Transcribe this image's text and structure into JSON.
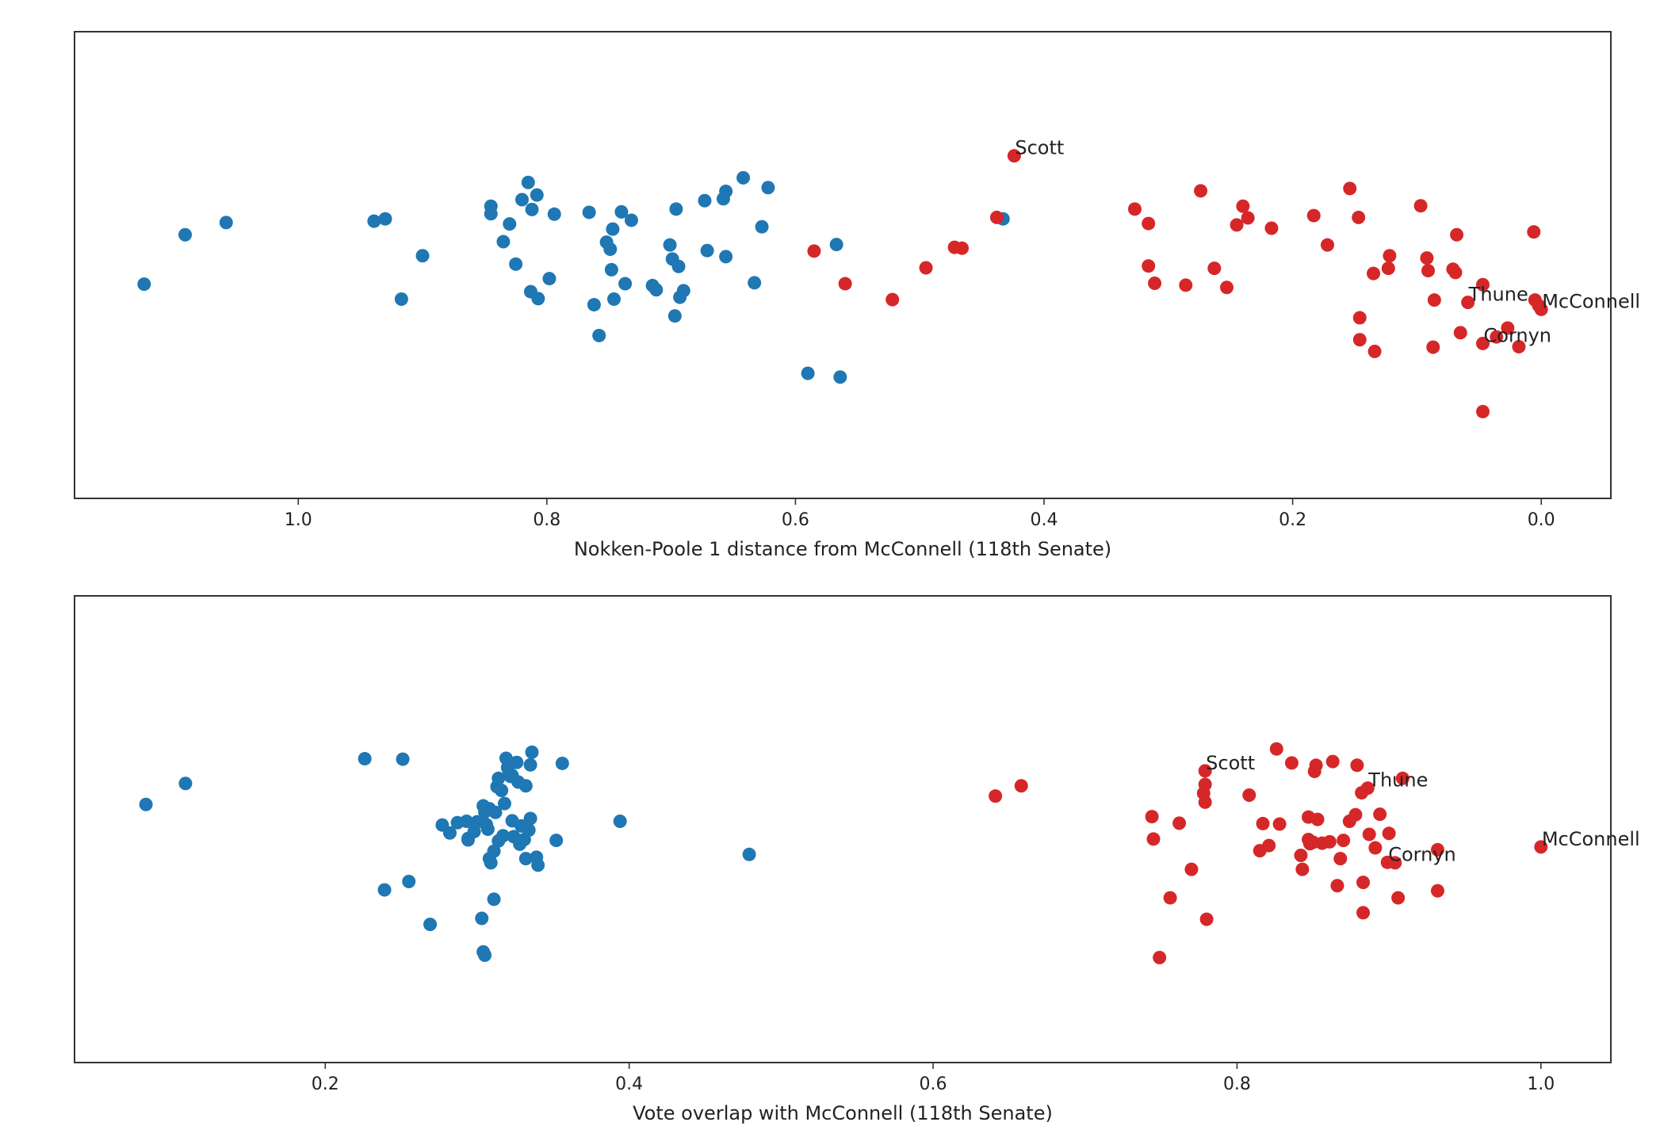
{
  "colors": {
    "democrat": "#1f77b4",
    "republican": "#d62728",
    "axis": "#333333",
    "text": "#222222"
  },
  "chart_data": [
    {
      "type": "scatter",
      "title": "",
      "xlabel": "Nokken-Poole 1 distance from McConnell (118th Senate)",
      "ylabel": "",
      "x_inverted": true,
      "xlim": [
        1.18,
        -0.056
      ],
      "ylim": [
        0,
        1
      ],
      "grid": false,
      "legend": "none",
      "x_ticks": [
        1.0,
        0.8,
        0.6,
        0.4,
        0.2,
        0.0
      ],
      "x_tick_labels": [
        "1.0",
        "0.8",
        "0.6",
        "0.4",
        "0.2",
        "0.0"
      ],
      "series": [
        {
          "color_key": "democrat",
          "points": [
            [
              1.124,
              0.459
            ],
            [
              1.091,
              0.565
            ],
            [
              1.058,
              0.591
            ],
            [
              0.939,
              0.594
            ],
            [
              0.93,
              0.599
            ],
            [
              0.917,
              0.427
            ],
            [
              0.9,
              0.52
            ],
            [
              0.845,
              0.626
            ],
            [
              0.845,
              0.61
            ],
            [
              0.835,
              0.55
            ],
            [
              0.83,
              0.588
            ],
            [
              0.825,
              0.502
            ],
            [
              0.82,
              0.64
            ],
            [
              0.815,
              0.677
            ],
            [
              0.813,
              0.443
            ],
            [
              0.812,
              0.619
            ],
            [
              0.808,
              0.65
            ],
            [
              0.807,
              0.428
            ],
            [
              0.798,
              0.471
            ],
            [
              0.794,
              0.609
            ],
            [
              0.766,
              0.613
            ],
            [
              0.762,
              0.415
            ],
            [
              0.758,
              0.349
            ],
            [
              0.752,
              0.549
            ],
            [
              0.749,
              0.534
            ],
            [
              0.748,
              0.49
            ],
            [
              0.747,
              0.577
            ],
            [
              0.746,
              0.427
            ],
            [
              0.74,
              0.614
            ],
            [
              0.737,
              0.46
            ],
            [
              0.732,
              0.596
            ],
            [
              0.715,
              0.456
            ],
            [
              0.712,
              0.447
            ],
            [
              0.701,
              0.543
            ],
            [
              0.699,
              0.513
            ],
            [
              0.697,
              0.391
            ],
            [
              0.696,
              0.62
            ],
            [
              0.694,
              0.497
            ],
            [
              0.693,
              0.431
            ],
            [
              0.69,
              0.445
            ],
            [
              0.673,
              0.638
            ],
            [
              0.671,
              0.531
            ],
            [
              0.658,
              0.642
            ],
            [
              0.656,
              0.518
            ],
            [
              0.656,
              0.658
            ],
            [
              0.642,
              0.687
            ],
            [
              0.633,
              0.462
            ],
            [
              0.627,
              0.582
            ],
            [
              0.622,
              0.666
            ],
            [
              0.59,
              0.268
            ],
            [
              0.567,
              0.544
            ],
            [
              0.564,
              0.26
            ],
            [
              0.433,
              0.599
            ]
          ]
        },
        {
          "color_key": "republican",
          "points": [
            [
              0.585,
              0.53
            ],
            [
              0.56,
              0.46
            ],
            [
              0.522,
              0.426
            ],
            [
              0.495,
              0.494
            ],
            [
              0.472,
              0.538
            ],
            [
              0.466,
              0.536
            ],
            [
              0.438,
              0.602
            ],
            [
              0.424,
              0.734
            ],
            [
              0.327,
              0.62
            ],
            [
              0.316,
              0.589
            ],
            [
              0.316,
              0.498
            ],
            [
              0.311,
              0.461
            ],
            [
              0.286,
              0.457
            ],
            [
              0.274,
              0.659
            ],
            [
              0.263,
              0.493
            ],
            [
              0.253,
              0.452
            ],
            [
              0.245,
              0.586
            ],
            [
              0.24,
              0.626
            ],
            [
              0.236,
              0.601
            ],
            [
              0.217,
              0.579
            ],
            [
              0.183,
              0.606
            ],
            [
              0.172,
              0.543
            ],
            [
              0.154,
              0.664
            ],
            [
              0.147,
              0.602
            ],
            [
              0.146,
              0.387
            ],
            [
              0.146,
              0.34
            ],
            [
              0.135,
              0.482
            ],
            [
              0.134,
              0.315
            ],
            [
              0.123,
              0.493
            ],
            [
              0.122,
              0.52
            ],
            [
              0.097,
              0.627
            ],
            [
              0.092,
              0.515
            ],
            [
              0.091,
              0.488
            ],
            [
              0.087,
              0.324
            ],
            [
              0.086,
              0.425
            ],
            [
              0.071,
              0.491
            ],
            [
              0.069,
              0.484
            ],
            [
              0.068,
              0.565
            ],
            [
              0.065,
              0.355
            ],
            [
              0.059,
              0.42
            ],
            [
              0.047,
              0.186
            ],
            [
              0.047,
              0.332
            ],
            [
              0.047,
              0.458
            ],
            [
              0.036,
              0.346
            ],
            [
              0.027,
              0.365
            ],
            [
              0.018,
              0.325
            ],
            [
              0.006,
              0.571
            ],
            [
              0.005,
              0.425
            ],
            [
              0.002,
              0.413
            ],
            [
              0.0,
              0.405
            ]
          ]
        }
      ],
      "annotations": [
        {
          "text": "Scott",
          "x": 0.424,
          "y": 0.734
        },
        {
          "text": "Thune",
          "x": 0.059,
          "y": 0.42
        },
        {
          "text": "McConnell",
          "x": 0.0,
          "y": 0.405
        },
        {
          "text": "Cornyn",
          "x": 0.047,
          "y": 0.332
        }
      ]
    },
    {
      "type": "scatter",
      "title": "",
      "xlabel": "Vote overlap with McConnell (118th Senate)",
      "ylabel": "",
      "x_inverted": false,
      "xlim": [
        0.035,
        1.046
      ],
      "ylim": [
        0,
        1
      ],
      "grid": false,
      "legend": "none",
      "x_ticks": [
        0.2,
        0.4,
        0.6,
        0.8,
        1.0
      ],
      "x_tick_labels": [
        "0.2",
        "0.4",
        "0.6",
        "0.8",
        "1.0"
      ],
      "series": [
        {
          "color_key": "democrat",
          "points": [
            [
              0.082,
              0.553
            ],
            [
              0.108,
              0.598
            ],
            [
              0.226,
              0.651
            ],
            [
              0.239,
              0.37
            ],
            [
              0.251,
              0.65
            ],
            [
              0.255,
              0.388
            ],
            [
              0.269,
              0.296
            ],
            [
              0.277,
              0.509
            ],
            [
              0.282,
              0.492
            ],
            [
              0.287,
              0.514
            ],
            [
              0.293,
              0.517
            ],
            [
              0.294,
              0.48
            ],
            [
              0.294,
              0.477
            ],
            [
              0.298,
              0.495
            ],
            [
              0.3,
              0.516
            ],
            [
              0.303,
              0.309
            ],
            [
              0.304,
              0.237
            ],
            [
              0.304,
              0.55
            ],
            [
              0.305,
              0.537
            ],
            [
              0.306,
              0.51
            ],
            [
              0.307,
              0.5
            ],
            [
              0.308,
              0.544
            ],
            [
              0.308,
              0.437
            ],
            [
              0.309,
              0.428
            ],
            [
              0.311,
              0.453
            ],
            [
              0.312,
              0.536
            ],
            [
              0.313,
              0.591
            ],
            [
              0.314,
              0.609
            ],
            [
              0.314,
              0.475
            ],
            [
              0.316,
              0.583
            ],
            [
              0.317,
              0.486
            ],
            [
              0.318,
              0.555
            ],
            [
              0.319,
              0.652
            ],
            [
              0.32,
              0.632
            ],
            [
              0.321,
              0.618
            ],
            [
              0.322,
              0.613
            ],
            [
              0.323,
              0.615
            ],
            [
              0.323,
              0.518
            ],
            [
              0.324,
              0.484
            ],
            [
              0.326,
              0.643
            ],
            [
              0.327,
              0.601
            ],
            [
              0.328,
              0.468
            ],
            [
              0.329,
              0.507
            ],
            [
              0.331,
              0.478
            ],
            [
              0.332,
              0.593
            ],
            [
              0.332,
              0.437
            ],
            [
              0.334,
              0.498
            ],
            [
              0.335,
              0.638
            ],
            [
              0.335,
              0.523
            ],
            [
              0.336,
              0.665
            ],
            [
              0.339,
              0.44
            ],
            [
              0.34,
              0.423
            ],
            [
              0.352,
              0.476
            ],
            [
              0.356,
              0.641
            ],
            [
              0.394,
              0.517
            ],
            [
              0.479,
              0.446
            ],
            [
              0.305,
              0.23
            ],
            [
              0.311,
              0.35
            ]
          ]
        },
        {
          "color_key": "republican",
          "points": [
            [
              0.641,
              0.571
            ],
            [
              0.658,
              0.593
            ],
            [
              0.744,
              0.527
            ],
            [
              0.745,
              0.479
            ],
            [
              0.749,
              0.225
            ],
            [
              0.756,
              0.353
            ],
            [
              0.762,
              0.513
            ],
            [
              0.77,
              0.414
            ],
            [
              0.778,
              0.577
            ],
            [
              0.779,
              0.558
            ],
            [
              0.779,
              0.596
            ],
            [
              0.779,
              0.625
            ],
            [
              0.78,
              0.307
            ],
            [
              0.808,
              0.573
            ],
            [
              0.815,
              0.454
            ],
            [
              0.817,
              0.512
            ],
            [
              0.821,
              0.465
            ],
            [
              0.826,
              0.672
            ],
            [
              0.828,
              0.511
            ],
            [
              0.836,
              0.642
            ],
            [
              0.842,
              0.444
            ],
            [
              0.843,
              0.414
            ],
            [
              0.847,
              0.478
            ],
            [
              0.847,
              0.526
            ],
            [
              0.848,
              0.469
            ],
            [
              0.85,
              0.472
            ],
            [
              0.851,
              0.624
            ],
            [
              0.852,
              0.637
            ],
            [
              0.853,
              0.521
            ],
            [
              0.856,
              0.47
            ],
            [
              0.861,
              0.473
            ],
            [
              0.863,
              0.645
            ],
            [
              0.866,
              0.379
            ],
            [
              0.868,
              0.437
            ],
            [
              0.87,
              0.476
            ],
            [
              0.874,
              0.517
            ],
            [
              0.878,
              0.531
            ],
            [
              0.879,
              0.637
            ],
            [
              0.882,
              0.578
            ],
            [
              0.883,
              0.321
            ],
            [
              0.883,
              0.386
            ],
            [
              0.886,
              0.588
            ],
            [
              0.887,
              0.489
            ],
            [
              0.891,
              0.46
            ],
            [
              0.894,
              0.532
            ],
            [
              0.899,
              0.429
            ],
            [
              0.9,
              0.491
            ],
            [
              0.904,
              0.428
            ],
            [
              0.906,
              0.353
            ],
            [
              0.909,
              0.609
            ],
            [
              0.932,
              0.456
            ],
            [
              0.932,
              0.368
            ],
            [
              1.0,
              0.462
            ]
          ]
        }
      ],
      "annotations": [
        {
          "text": "Scott",
          "x": 0.779,
          "y": 0.625
        },
        {
          "text": "Thune",
          "x": 0.886,
          "y": 0.588
        },
        {
          "text": "McConnell",
          "x": 1.0,
          "y": 0.462
        },
        {
          "text": "Cornyn",
          "x": 0.899,
          "y": 0.429
        }
      ]
    }
  ]
}
